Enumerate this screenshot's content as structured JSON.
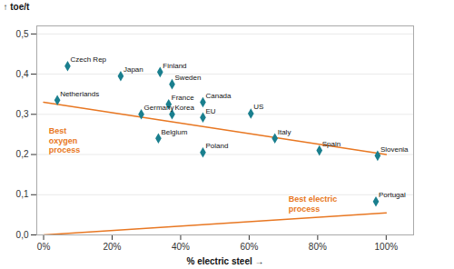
{
  "chart_data": {
    "type": "scatter",
    "xlabel": "% electric steel",
    "ylabel": "toe/t",
    "points": {
      "labels": [
        "Czech Rep",
        "Japan",
        "Finland",
        "Sweden",
        "Netherlands",
        "France",
        "Canada",
        "Germany",
        "Korea",
        "EU",
        "US",
        "Italy",
        "Belgium",
        "Poland",
        "Spain",
        "Slovenia",
        "Portugal"
      ],
      "x": [
        0.07,
        0.225,
        0.34,
        0.375,
        0.04,
        0.365,
        0.465,
        0.285,
        0.375,
        0.465,
        0.605,
        0.675,
        0.335,
        0.465,
        0.805,
        0.975,
        0.97
      ],
      "y": [
        0.42,
        0.395,
        0.405,
        0.375,
        0.335,
        0.325,
        0.33,
        0.3,
        0.3,
        0.292,
        0.302,
        0.24,
        0.24,
        0.205,
        0.21,
        0.197,
        0.083
      ],
      "color": "#1a7f8e",
      "marker": "diamond"
    },
    "lines": [
      {
        "x": [
          0.0,
          1.0
        ],
        "y": [
          0.33,
          0.2
        ],
        "color": "#e87722"
      },
      {
        "x": [
          0.0,
          1.0
        ],
        "y": [
          0.0,
          0.055
        ],
        "color": "#e87722"
      }
    ],
    "annotations": [
      {
        "text": "Best\noxygen\nprocess",
        "x": 0.015,
        "y": 0.27,
        "color": "#e87722"
      },
      {
        "text": "Best electric\nprocess",
        "x": 0.715,
        "y": 0.1,
        "color": "#e87722"
      }
    ],
    "xlim": [
      -0.02,
      1.08
    ],
    "ylim": [
      0.0,
      0.52
    ],
    "xticks": [
      {
        "value": 0.0,
        "label": "0%"
      },
      {
        "value": 0.2,
        "label": "20%"
      },
      {
        "value": 0.4,
        "label": "40%"
      },
      {
        "value": 0.6,
        "label": "60%"
      },
      {
        "value": 0.8,
        "label": "80%"
      },
      {
        "value": 1.0,
        "label": "100%"
      }
    ],
    "yticks": [
      {
        "value": 0.0,
        "label": "0,0"
      },
      {
        "value": 0.1,
        "label": "0,1"
      },
      {
        "value": 0.2,
        "label": "0,2"
      },
      {
        "value": 0.3,
        "label": "0,3"
      },
      {
        "value": 0.4,
        "label": "0,4"
      },
      {
        "value": 0.5,
        "label": "0,5"
      }
    ],
    "grid": "y"
  }
}
